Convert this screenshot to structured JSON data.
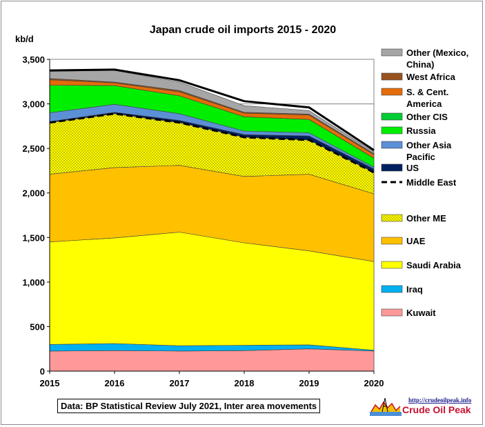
{
  "chart_data": {
    "type": "area",
    "stacked": true,
    "title": "Japan crude oil imports 2015 - 2020",
    "ylabel": "kb/d",
    "xlabel": "",
    "x": [
      2015,
      2016,
      2017,
      2018,
      2019,
      2020
    ],
    "x_ticks": [
      "2015",
      "2016",
      "2017",
      "2018",
      "2019",
      "2020"
    ],
    "ylim": [
      0,
      3500
    ],
    "y_ticks": [
      0,
      500,
      1000,
      1500,
      2000,
      2500,
      3000,
      3500
    ],
    "y_tick_labels": [
      "0",
      "500",
      "1,000",
      "1,500",
      "2,000",
      "2,500",
      "3,000",
      "3,500"
    ],
    "grid": "single reference line at 3,000",
    "series": [
      {
        "name": "Kuwait",
        "color": "#ff9999",
        "pattern": "solid",
        "values": [
          225,
          230,
          225,
          230,
          250,
          225
        ]
      },
      {
        "name": "Iraq",
        "color": "#00b0f0",
        "pattern": "solid",
        "values": [
          75,
          80,
          60,
          60,
          45,
          10
        ]
      },
      {
        "name": "Saudi Arabia",
        "color": "#ffff00",
        "pattern": "solid",
        "values": [
          1150,
          1185,
          1275,
          1150,
          1055,
          995
        ]
      },
      {
        "name": "UAE",
        "color": "#ffc000",
        "pattern": "solid",
        "values": [
          760,
          790,
          750,
          745,
          860,
          760
        ]
      },
      {
        "name": "Other ME",
        "color": "#ffff00",
        "pattern": "dotted",
        "values": [
          580,
          605,
          480,
          440,
          385,
          240
        ]
      },
      {
        "name": "US",
        "color": "#002060",
        "pattern": "solid",
        "values": [
          10,
          15,
          25,
          30,
          45,
          40
        ]
      },
      {
        "name": "Other Asia Pacific",
        "color": "#5b8fd6",
        "pattern": "solid",
        "values": [
          100,
          90,
          75,
          40,
          35,
          20
        ]
      },
      {
        "name": "Russia",
        "color": "#00ee00",
        "pattern": "solid",
        "values": [
          310,
          210,
          200,
          160,
          150,
          100
        ]
      },
      {
        "name": "Other CIS",
        "color": "#00cc33",
        "pattern": "solid",
        "values": [
          0,
          0,
          0,
          0,
          0,
          0
        ]
      },
      {
        "name": "S. & Cent. America",
        "color": "#e46c0a",
        "pattern": "solid",
        "values": [
          60,
          30,
          45,
          40,
          50,
          40
        ]
      },
      {
        "name": "West Africa",
        "color": "#99521e",
        "pattern": "solid",
        "values": [
          15,
          10,
          15,
          10,
          10,
          10
        ]
      },
      {
        "name": "Other (Mexico, China)",
        "color": "#a6a6a6",
        "pattern": "solid",
        "values": [
          80,
          130,
          95,
          75,
          40,
          20
        ]
      }
    ],
    "middle_east_total": {
      "name": "Middle East",
      "style": "dashed",
      "values": [
        2790,
        2890,
        2790,
        2625,
        2595,
        2230
      ]
    },
    "total_line": {
      "values": [
        3375,
        3385,
        3265,
        3030,
        2960,
        2480
      ]
    },
    "legend_placement": "right",
    "legend": [
      {
        "label": "Other (Mexico, China)",
        "swatch": "#a6a6a6",
        "kind": "box"
      },
      {
        "label": "West Africa",
        "swatch": "#99521e",
        "kind": "box"
      },
      {
        "label": "S. & Cent. America",
        "swatch": "#e46c0a",
        "kind": "box"
      },
      {
        "label": "Other CIS",
        "swatch": "#00cc33",
        "kind": "box"
      },
      {
        "label": "Russia",
        "swatch": "#00ee00",
        "kind": "box"
      },
      {
        "label": "Other Asia Pacific",
        "swatch": "#5b8fd6",
        "kind": "box"
      },
      {
        "label": "US",
        "swatch": "#002060",
        "kind": "box"
      },
      {
        "label": "Middle East",
        "swatch": "#000000",
        "kind": "dash"
      },
      {
        "label": "Other ME",
        "swatch": "#ffff00",
        "kind": "dotted"
      },
      {
        "label": "UAE",
        "swatch": "#ffc000",
        "kind": "box"
      },
      {
        "label": "Saudi Arabia",
        "swatch": "#ffff00",
        "kind": "box"
      },
      {
        "label": "Iraq",
        "swatch": "#00b0f0",
        "kind": "box"
      },
      {
        "label": "Kuwait",
        "swatch": "#ff9999",
        "kind": "box"
      }
    ]
  },
  "source_note": "Data: BP Statistical Review July 2021, Inter area movements",
  "logo": {
    "url_text": "http://crudeoilpeak.info",
    "name": "Crude Oil Peak"
  }
}
